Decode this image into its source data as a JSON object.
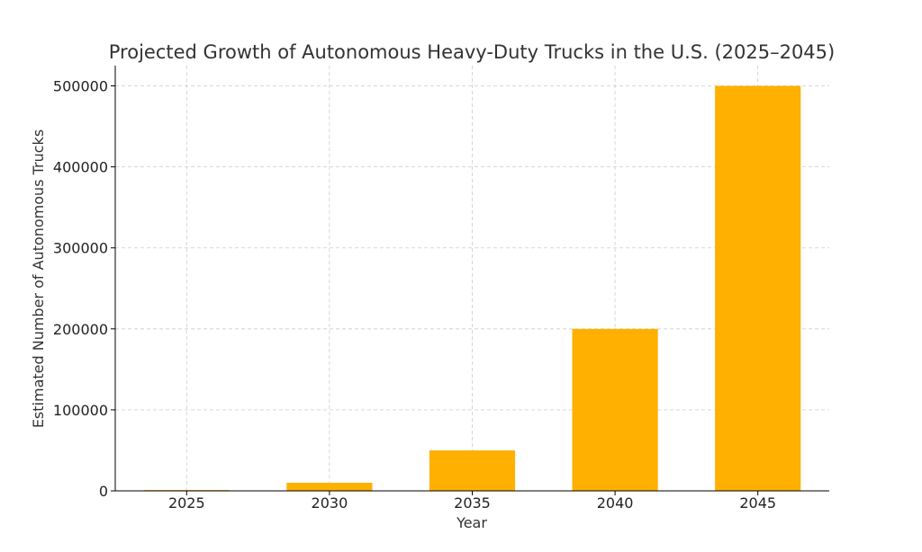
{
  "chart_data": {
    "type": "bar",
    "title": "Projected Growth of Autonomous Heavy-Duty Trucks in the U.S. (2025–2045)",
    "xlabel": "Year",
    "ylabel": "Estimated Number of Autonomous Trucks",
    "categories": [
      "2025",
      "2030",
      "2035",
      "2040",
      "2045"
    ],
    "values": [
      1000,
      10000,
      50000,
      200000,
      500000
    ],
    "ylim": [
      0,
      525000
    ],
    "yticks": [
      0,
      100000,
      200000,
      300000,
      400000,
      500000
    ],
    "ytick_labels": [
      "0",
      "100000",
      "200000",
      "300000",
      "400000",
      "500000"
    ],
    "grid": true,
    "bar_color": "#FFB000"
  }
}
